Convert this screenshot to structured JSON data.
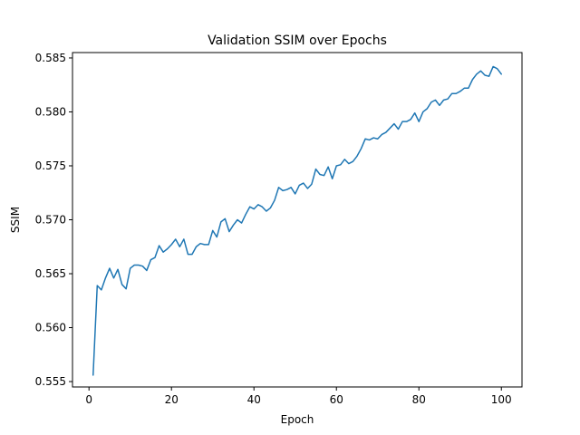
{
  "chart_data": {
    "type": "line",
    "title": "Validation SSIM over Epochs",
    "xlabel": "Epoch",
    "ylabel": "SSIM",
    "xlim": [
      -4,
      105
    ],
    "ylim": [
      0.5545,
      0.5855
    ],
    "xticks": [
      0,
      20,
      40,
      60,
      80,
      100
    ],
    "yticks": [
      0.555,
      0.56,
      0.565,
      0.57,
      0.575,
      0.58,
      0.585
    ],
    "ytick_labels": [
      "0.555",
      "0.560",
      "0.565",
      "0.570",
      "0.575",
      "0.580",
      "0.585"
    ],
    "grid": false,
    "line_color": "#1f77b4",
    "series": [
      {
        "x": [
          1,
          2,
          3,
          4,
          5,
          6,
          7,
          8,
          9,
          10,
          11,
          12,
          13,
          14,
          15,
          16,
          17,
          18,
          19,
          20,
          21,
          22,
          23,
          24,
          25,
          26,
          27,
          28,
          29,
          30,
          31,
          32,
          33,
          34,
          35,
          36,
          37,
          38,
          39,
          40,
          41,
          42,
          43,
          44,
          45,
          46,
          47,
          48,
          49,
          50,
          51,
          52,
          53,
          54,
          55,
          56,
          57,
          58,
          59,
          60,
          61,
          62,
          63,
          64,
          65,
          66,
          67,
          68,
          69,
          70,
          71,
          72,
          73,
          74,
          75,
          76,
          77,
          78,
          79,
          80,
          81,
          82,
          83,
          84,
          85,
          86,
          87,
          88,
          89,
          90,
          91,
          92,
          93,
          94,
          95,
          96,
          97,
          98,
          99,
          100
        ],
        "values": [
          0.5556,
          0.5639,
          0.5635,
          0.5646,
          0.5655,
          0.5646,
          0.5654,
          0.564,
          0.5636,
          0.5655,
          0.5658,
          0.5658,
          0.5657,
          0.5653,
          0.5663,
          0.5665,
          0.5676,
          0.567,
          0.5673,
          0.5677,
          0.5682,
          0.5675,
          0.5682,
          0.5668,
          0.5668,
          0.5675,
          0.5678,
          0.5677,
          0.5677,
          0.569,
          0.5684,
          0.5698,
          0.5701,
          0.5689,
          0.5695,
          0.57,
          0.5697,
          0.5705,
          0.5712,
          0.571,
          0.5714,
          0.5712,
          0.5708,
          0.5711,
          0.5718,
          0.573,
          0.5727,
          0.5728,
          0.573,
          0.5724,
          0.5732,
          0.5734,
          0.5729,
          0.5733,
          0.5747,
          0.5742,
          0.5741,
          0.5749,
          0.5738,
          0.575,
          0.5751,
          0.5756,
          0.5752,
          0.5754,
          0.5759,
          0.5766,
          0.5775,
          0.5774,
          0.5776,
          0.5775,
          0.5779,
          0.5781,
          0.5785,
          0.5789,
          0.5784,
          0.5791,
          0.5791,
          0.5793,
          0.5799,
          0.5791,
          0.58,
          0.5803,
          0.5809,
          0.5811,
          0.5806,
          0.5811,
          0.5812,
          0.5817,
          0.5817,
          0.5819,
          0.5822,
          0.5822,
          0.583,
          0.5835,
          0.5838,
          0.5834,
          0.5833,
          0.5842,
          0.584,
          0.5835
        ]
      }
    ]
  }
}
